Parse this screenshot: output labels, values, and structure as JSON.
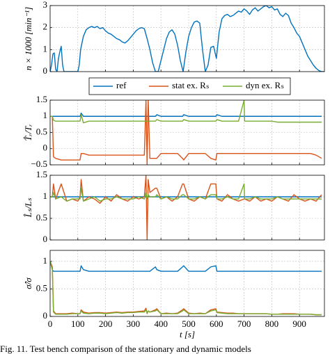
{
  "caption": "Fig. 11.   Test bench comparison of the stationary and dynamic models",
  "chart_data": [
    {
      "type": "line",
      "ylabel": "n × 1000 [min⁻¹]",
      "x": [
        0,
        5,
        10,
        15,
        20,
        25,
        30,
        35,
        40,
        45,
        50,
        100,
        105,
        110,
        120,
        130,
        140,
        150,
        160,
        170,
        180,
        190,
        200,
        210,
        220,
        230,
        240,
        250,
        260,
        270,
        280,
        290,
        300,
        310,
        320,
        330,
        340,
        350,
        360,
        370,
        380,
        390,
        400,
        410,
        420,
        430,
        440,
        450,
        460,
        470,
        480,
        490,
        500,
        510,
        520,
        530,
        540,
        550,
        560,
        570,
        580,
        590,
        600,
        610,
        620,
        630,
        640,
        650,
        660,
        670,
        680,
        690,
        700,
        710,
        720,
        730,
        740,
        750,
        760,
        770,
        780,
        790,
        800,
        810,
        820,
        830,
        840,
        850,
        860,
        870,
        880,
        890,
        900,
        910,
        920,
        930,
        940,
        950,
        960,
        970,
        980,
        990
      ],
      "series": [
        {
          "name": "ref",
          "color": "#0072bd",
          "values": [
            0,
            0.3,
            0.8,
            0.85,
            0.1,
            0,
            0.6,
            0.9,
            1.15,
            0.3,
            0,
            0,
            0.3,
            1.0,
            1.6,
            1.9,
            2.0,
            2.05,
            2.0,
            2.05,
            1.95,
            2.0,
            1.85,
            1.75,
            1.7,
            1.6,
            1.5,
            1.45,
            1.35,
            1.3,
            1.4,
            1.55,
            1.7,
            1.85,
            1.95,
            2.0,
            1.95,
            1.5,
            1.0,
            0.4,
            0,
            0,
            0.5,
            1.0,
            1.5,
            1.8,
            1.9,
            1.7,
            1.2,
            0.5,
            0,
            0.9,
            1.6,
            2.0,
            2.25,
            2.3,
            2.2,
            1.0,
            0,
            0.3,
            1.1,
            1.15,
            0.6,
            1.8,
            2.4,
            2.55,
            2.6,
            2.5,
            2.55,
            2.65,
            2.75,
            2.7,
            2.85,
            2.75,
            2.6,
            2.8,
            2.9,
            2.75,
            2.85,
            2.95,
            3.0,
            2.9,
            2.95,
            2.8,
            2.85,
            2.6,
            2.5,
            2.65,
            2.55,
            2.2,
            2.0,
            1.75,
            1.6,
            1.3,
            1.0,
            0.7,
            0.5,
            0.3,
            0.15,
            0.05,
            0,
            0
          ]
        }
      ],
      "xlim": [
        0,
        990
      ],
      "xticks": [
        0,
        100,
        200,
        300,
        400,
        500,
        600,
        700,
        800,
        900
      ],
      "ylim": [
        0,
        3
      ],
      "yticks": [
        0,
        1,
        2,
        3
      ],
      "grid": true
    },
    {
      "type": "line",
      "ylabel": "T̂ᵣ/Tᵣ",
      "legend": "above",
      "x": [
        0,
        8,
        12,
        20,
        40,
        60,
        80,
        100,
        108,
        112,
        120,
        140,
        160,
        180,
        200,
        220,
        240,
        260,
        280,
        300,
        320,
        340,
        346,
        350,
        354,
        360,
        380,
        385,
        400,
        420,
        440,
        460,
        478,
        482,
        500,
        520,
        540,
        560,
        580,
        598,
        602,
        620,
        640,
        660,
        680,
        700,
        702,
        720,
        740,
        760,
        780,
        800,
        820,
        840,
        860,
        880,
        900,
        920,
        940,
        960,
        980
      ],
      "series": [
        {
          "name": "ref",
          "color": "#0072bd",
          "values": [
            1,
            1,
            1,
            1,
            1,
            1,
            1,
            1,
            1,
            1.1,
            1,
            1,
            1,
            1,
            1,
            1,
            1,
            1,
            1,
            1,
            1,
            1,
            1,
            1,
            1,
            1,
            1,
            1.05,
            1,
            1,
            1,
            1,
            1,
            1.05,
            1,
            1,
            1,
            1,
            1,
            1,
            1.05,
            1,
            1,
            1,
            1,
            1,
            1,
            1,
            1,
            1,
            1,
            1,
            1,
            1,
            1,
            1,
            1,
            1,
            1,
            1,
            1
          ]
        },
        {
          "name": "stat ex. Rₛ",
          "color": "#d95319",
          "values": [
            1,
            1,
            -0.25,
            -0.3,
            -0.35,
            -0.35,
            -0.35,
            -0.35,
            -0.35,
            -0.15,
            -0.15,
            -0.2,
            -0.2,
            -0.2,
            -0.2,
            -0.2,
            -0.2,
            -0.2,
            -0.2,
            -0.2,
            -0.2,
            -0.2,
            1.5,
            -0.5,
            1.5,
            -0.3,
            -0.3,
            -0.3,
            -0.15,
            -0.15,
            -0.15,
            -0.15,
            -0.3,
            -0.35,
            -0.15,
            -0.15,
            -0.15,
            -0.15,
            -0.3,
            -0.35,
            -0.15,
            -0.15,
            -0.15,
            -0.15,
            -0.15,
            -0.15,
            -0.15,
            -0.15,
            -0.15,
            -0.15,
            -0.15,
            -0.15,
            -0.15,
            -0.15,
            -0.15,
            -0.15,
            -0.15,
            -0.15,
            -0.15,
            -0.2,
            -0.3
          ]
        },
        {
          "name": "dyn ex. Rₛ",
          "color": "#77ac30",
          "values": [
            1,
            1,
            0.88,
            0.85,
            0.85,
            0.85,
            0.85,
            0.85,
            0.85,
            1.05,
            0.8,
            0.85,
            0.85,
            0.85,
            0.85,
            0.85,
            0.85,
            0.85,
            0.85,
            0.85,
            0.85,
            0.85,
            0.85,
            0.85,
            0.85,
            0.85,
            0.85,
            0.9,
            0.85,
            0.85,
            0.85,
            0.85,
            0.85,
            0.9,
            0.85,
            0.85,
            0.85,
            0.85,
            0.85,
            0.85,
            0.9,
            0.85,
            0.85,
            0.85,
            0.85,
            1.5,
            0.85,
            0.85,
            0.85,
            0.85,
            0.85,
            0.85,
            0.82,
            0.82,
            0.82,
            0.82,
            0.82,
            0.82,
            0.82,
            0.82,
            0.82
          ]
        }
      ],
      "xlim": [
        0,
        990
      ],
      "xticks": [
        0,
        100,
        200,
        300,
        400,
        500,
        600,
        700,
        800,
        900
      ],
      "ylim": [
        -0.5,
        1.5
      ],
      "yticks": [
        {
          "value": -0.5,
          "label": "−0.5"
        },
        0,
        0.5,
        1,
        1.5
      ],
      "grid": true
    },
    {
      "type": "line",
      "ylabel": "L̂ₛ/Lₛ",
      "x": [
        0,
        8,
        12,
        20,
        40,
        60,
        80,
        100,
        108,
        112,
        120,
        140,
        160,
        180,
        200,
        220,
        240,
        260,
        280,
        300,
        320,
        340,
        346,
        350,
        354,
        360,
        380,
        385,
        400,
        420,
        440,
        460,
        478,
        482,
        500,
        520,
        540,
        560,
        580,
        598,
        602,
        620,
        640,
        660,
        680,
        700,
        702,
        720,
        740,
        760,
        780,
        800,
        820,
        840,
        860,
        880,
        900,
        920,
        940,
        960,
        980
      ],
      "series": [
        {
          "name": "ref",
          "color": "#0072bd",
          "values": [
            1,
            1,
            1,
            1,
            1,
            1,
            1,
            1,
            1,
            1,
            1,
            1,
            1,
            1,
            1,
            1,
            1,
            1,
            1,
            1,
            1,
            1,
            1,
            1,
            1,
            1,
            1,
            1,
            1,
            1,
            1,
            1,
            1,
            1,
            1,
            1,
            1,
            1,
            1,
            1,
            1,
            1,
            1,
            1,
            1,
            1,
            1,
            1,
            1,
            1,
            1,
            1,
            1,
            1,
            1,
            1,
            1,
            1,
            1,
            1,
            1
          ]
        },
        {
          "name": "stat ex. Rₛ",
          "color": "#d95319",
          "values": [
            1,
            1,
            1.3,
            0.95,
            1.3,
            0.9,
            0.95,
            0.9,
            1,
            1.4,
            0.9,
            1.0,
            0.95,
            0.85,
            1.0,
            0.9,
            1.05,
            0.95,
            0.9,
            1.0,
            0.95,
            1.0,
            1.5,
            0,
            1.4,
            1.1,
            1.2,
            1.2,
            0.95,
            1.0,
            0.9,
            1.0,
            1.3,
            1.3,
            0.95,
            0.9,
            1.0,
            0.95,
            1.3,
            1.3,
            0.95,
            0.9,
            1.05,
            0.95,
            0.9,
            0.95,
            0.95,
            0.9,
            1.0,
            0.9,
            0.95,
            0.9,
            1.0,
            0.95,
            0.9,
            1.05,
            0.95,
            0.9,
            0.95,
            0.9,
            1.05
          ]
        },
        {
          "name": "dyn ex. Rₛ",
          "color": "#77ac30",
          "values": [
            1,
            1,
            1.1,
            0.95,
            1.0,
            0.9,
            0.95,
            0.95,
            0.95,
            1.2,
            0.9,
            0.95,
            1.0,
            0.9,
            0.95,
            0.95,
            1.0,
            0.95,
            0.95,
            0.95,
            1.0,
            0.95,
            1.1,
            0.95,
            1.05,
            1.0,
            1.0,
            1.05,
            0.95,
            1.0,
            0.95,
            0.95,
            1.05,
            1.05,
            0.95,
            0.95,
            1.0,
            0.95,
            1.05,
            1.05,
            0.95,
            0.95,
            1.0,
            0.95,
            0.95,
            1.3,
            0.95,
            0.95,
            1.0,
            0.95,
            0.95,
            0.95,
            1.0,
            0.95,
            0.95,
            0.95,
            0.95,
            0.95,
            0.95,
            0.95,
            0.95
          ]
        }
      ],
      "xlim": [
        0,
        990
      ],
      "xticks": [
        0,
        100,
        200,
        300,
        400,
        500,
        600,
        700,
        800,
        900
      ],
      "ylim": [
        0,
        1.5
      ],
      "yticks": [
        0,
        0.5,
        1,
        1.5
      ],
      "grid": true
    },
    {
      "type": "line",
      "ylabel": "σ̂/σ",
      "xlabel": "t [s]",
      "x": [
        0,
        8,
        12,
        20,
        40,
        60,
        80,
        100,
        108,
        112,
        120,
        140,
        160,
        180,
        200,
        220,
        240,
        260,
        280,
        300,
        320,
        340,
        346,
        350,
        354,
        360,
        380,
        385,
        400,
        420,
        440,
        460,
        478,
        482,
        500,
        520,
        540,
        560,
        580,
        598,
        602,
        620,
        640,
        660,
        680,
        700,
        702,
        720,
        740,
        760,
        780,
        800,
        820,
        840,
        860,
        880,
        900,
        920,
        940,
        960,
        980
      ],
      "series": [
        {
          "name": "ref",
          "color": "#0072bd",
          "values": [
            1,
            0.85,
            0.82,
            0.82,
            0.82,
            0.82,
            0.82,
            0.82,
            0.82,
            0.92,
            0.85,
            0.82,
            0.82,
            0.82,
            0.82,
            0.82,
            0.82,
            0.82,
            0.82,
            0.82,
            0.82,
            0.82,
            0.82,
            0.82,
            0.82,
            0.82,
            0.9,
            0.85,
            0.82,
            0.82,
            0.82,
            0.82,
            0.9,
            0.92,
            0.82,
            0.82,
            0.82,
            0.82,
            0.9,
            0.92,
            0.82,
            0.82,
            0.82,
            0.82,
            0.82,
            0.82,
            0.82,
            0.82,
            0.82,
            0.82,
            0.82,
            0.82,
            0.82,
            0.82,
            0.82,
            0.82,
            0.82,
            0.82,
            0.82,
            0.82,
            0.82
          ]
        },
        {
          "name": "stat ex. Rₛ",
          "color": "#d95319",
          "values": [
            1,
            0.9,
            0.1,
            0.05,
            0.05,
            0.05,
            0.06,
            0.05,
            0.05,
            0.12,
            0.08,
            0.06,
            0.07,
            0.07,
            0.06,
            0.07,
            0.08,
            0.07,
            0.08,
            0.08,
            0.09,
            0.1,
            0.15,
            0.05,
            0.1,
            0.08,
            0.12,
            0.14,
            0.05,
            0.06,
            0.05,
            0.06,
            0.12,
            0.14,
            0.06,
            0.05,
            0.06,
            0.05,
            0.12,
            0.14,
            0.08,
            0.07,
            0.06,
            0.06,
            0.05,
            0.05,
            0.05,
            0.05,
            0.05,
            0.05,
            0.05,
            0.04,
            0.04,
            0.05,
            0.05,
            0.05,
            0.04,
            0.04,
            0.04,
            0.03,
            0.03
          ]
        },
        {
          "name": "dyn ex. Rₛ",
          "color": "#77ac30",
          "values": [
            1,
            0.85,
            0.08,
            0.04,
            0.04,
            0.04,
            0.05,
            0.05,
            0.05,
            0.1,
            0.06,
            0.05,
            0.06,
            0.06,
            0.05,
            0.06,
            0.07,
            0.06,
            0.07,
            0.07,
            0.08,
            0.08,
            0.12,
            0.06,
            0.1,
            0.08,
            0.1,
            0.12,
            0.05,
            0.05,
            0.05,
            0.05,
            0.1,
            0.12,
            0.05,
            0.05,
            0.05,
            0.05,
            0.1,
            0.12,
            0.07,
            0.06,
            0.05,
            0.05,
            0.05,
            0.05,
            0.05,
            0.05,
            0.05,
            0.05,
            0.05,
            0.04,
            0.04,
            0.04,
            0.04,
            0.04,
            0.04,
            0.04,
            0.04,
            0.03,
            0.03
          ]
        }
      ],
      "xlim": [
        0,
        990
      ],
      "xticks": [
        0,
        100,
        200,
        300,
        400,
        500,
        600,
        700,
        800,
        900
      ],
      "ylim": [
        0,
        1.2
      ],
      "yticks": [
        0,
        0.5,
        1
      ],
      "grid": true
    }
  ]
}
